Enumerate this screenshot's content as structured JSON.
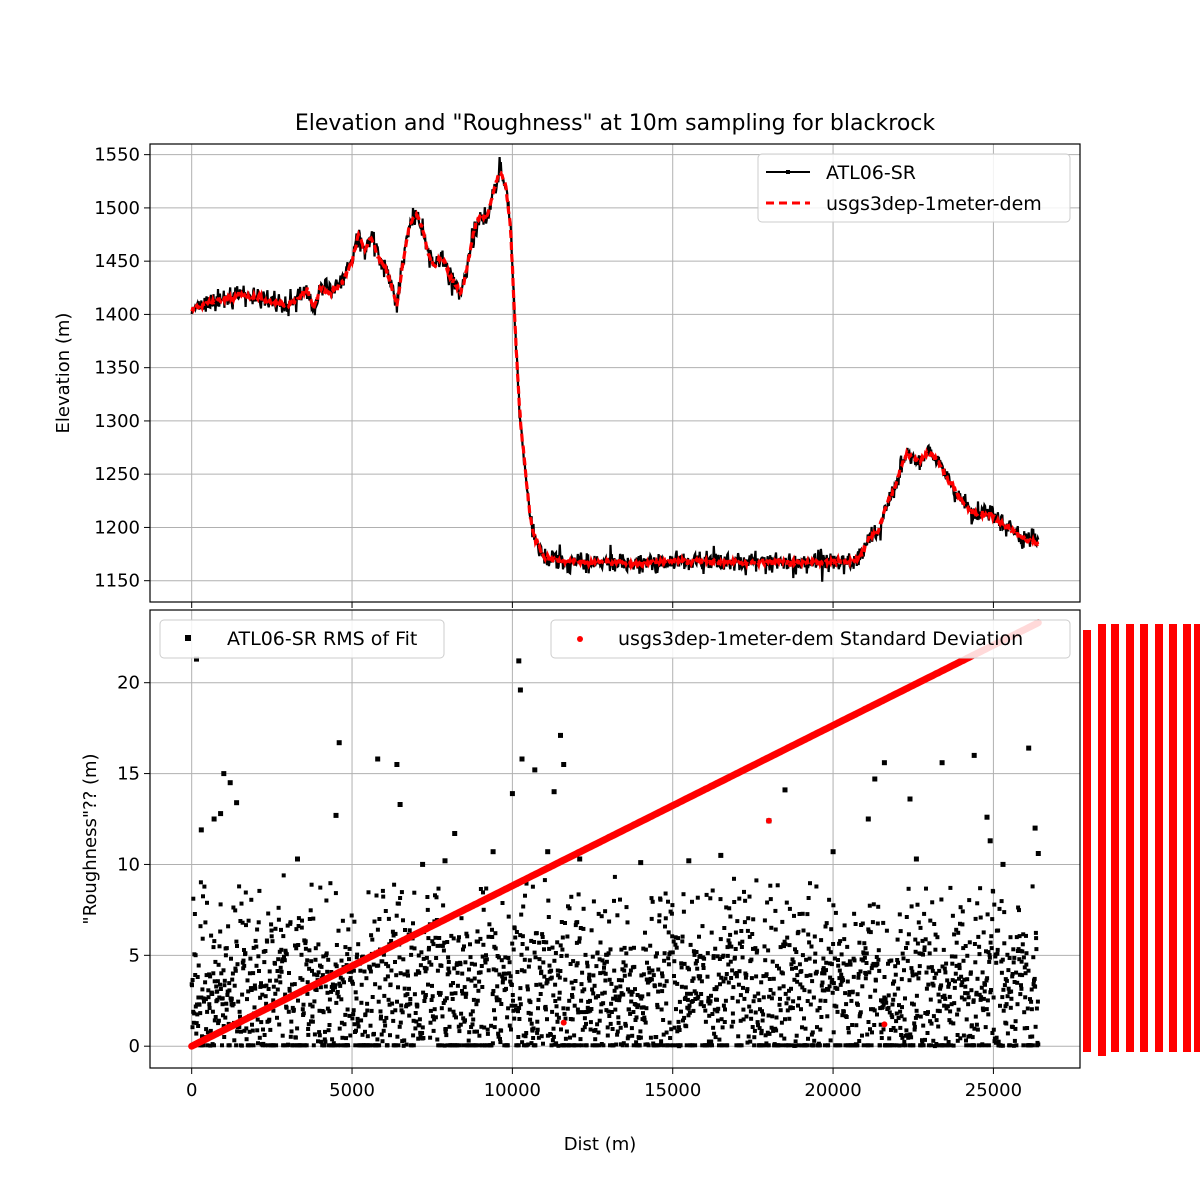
{
  "title": "Elevation and \"Roughness\" at 10m sampling for blackrock",
  "colors": {
    "atl06": "#000000",
    "dem": "#ff0000",
    "grid": "#b0b0b0"
  },
  "chart_data": [
    {
      "type": "line",
      "panel": "top",
      "title": "Elevation and \"Roughness\" at 10m sampling for blackrock",
      "ylabel": "Elevation (m)",
      "xlabel": "",
      "xlim": [
        -1300,
        27700
      ],
      "ylim": [
        1130,
        1560
      ],
      "x_ticks": [
        0,
        5000,
        10000,
        15000,
        20000,
        25000
      ],
      "y_ticks": [
        1150,
        1200,
        1250,
        1300,
        1350,
        1400,
        1450,
        1500,
        1550
      ],
      "y_tick_labels": [
        "1150",
        "1200",
        "1250",
        "1300",
        "1350",
        "1400",
        "1450",
        "1500",
        "1550"
      ],
      "grid": true,
      "legend_position": "top-right",
      "series": [
        {
          "name": "ATL06-SR",
          "style": "solid-marker",
          "x": [
            0,
            500,
            1000,
            1500,
            2000,
            2500,
            3000,
            3300,
            3600,
            3800,
            4000,
            4300,
            4700,
            5000,
            5200,
            5400,
            5600,
            5800,
            6000,
            6200,
            6400,
            6600,
            6800,
            7000,
            7200,
            7400,
            7600,
            7800,
            8000,
            8200,
            8400,
            8600,
            8800,
            9000,
            9200,
            9400,
            9600,
            9800,
            9950,
            10050,
            10150,
            10250,
            10350,
            10450,
            10550,
            10700,
            10850,
            11000,
            11300,
            11700,
            12000,
            13000,
            14000,
            15000,
            16000,
            17000,
            18000,
            19000,
            20000,
            20600,
            20900,
            21100,
            21400,
            21700,
            21900,
            22100,
            22300,
            22500,
            22700,
            22900,
            23100,
            23300,
            23500,
            23700,
            23900,
            24100,
            24300,
            24600,
            24900,
            25200,
            25500,
            25800,
            26100,
            26400
          ],
          "y": [
            1405,
            1410,
            1414,
            1418,
            1416,
            1412,
            1408,
            1415,
            1422,
            1405,
            1425,
            1420,
            1430,
            1450,
            1475,
            1460,
            1472,
            1455,
            1445,
            1430,
            1408,
            1450,
            1485,
            1495,
            1480,
            1455,
            1445,
            1455,
            1440,
            1428,
            1420,
            1445,
            1480,
            1492,
            1490,
            1515,
            1535,
            1520,
            1480,
            1410,
            1350,
            1300,
            1270,
            1240,
            1210,
            1190,
            1180,
            1172,
            1170,
            1168,
            1168,
            1167,
            1166,
            1168,
            1168,
            1167,
            1168,
            1167,
            1168,
            1168,
            1175,
            1190,
            1195,
            1225,
            1235,
            1255,
            1270,
            1265,
            1262,
            1268,
            1270,
            1260,
            1250,
            1240,
            1230,
            1222,
            1215,
            1212,
            1212,
            1206,
            1200,
            1192,
            1188,
            1185
          ]
        },
        {
          "name": "usgs3dep-1meter-dem",
          "style": "dashed",
          "x": [
            0,
            500,
            1000,
            1500,
            2000,
            2500,
            3000,
            3300,
            3600,
            3800,
            4000,
            4300,
            4700,
            5000,
            5200,
            5400,
            5600,
            5800,
            6000,
            6200,
            6400,
            6600,
            6800,
            7000,
            7200,
            7400,
            7600,
            7800,
            8000,
            8200,
            8400,
            8600,
            8800,
            9000,
            9200,
            9400,
            9600,
            9800,
            9950,
            10050,
            10150,
            10250,
            10350,
            10450,
            10550,
            10700,
            10850,
            11000,
            11300,
            11700,
            12000,
            13000,
            14000,
            15000,
            16000,
            17000,
            18000,
            19000,
            20000,
            20600,
            20900,
            21100,
            21400,
            21700,
            21900,
            22100,
            22300,
            22500,
            22700,
            22900,
            23100,
            23300,
            23500,
            23700,
            23900,
            24100,
            24300,
            24600,
            24900,
            25200,
            25500,
            25800,
            26100,
            26400
          ],
          "y": [
            1405,
            1410,
            1414,
            1418,
            1416,
            1412,
            1408,
            1415,
            1422,
            1405,
            1425,
            1420,
            1430,
            1450,
            1475,
            1460,
            1472,
            1455,
            1445,
            1430,
            1408,
            1450,
            1485,
            1495,
            1480,
            1455,
            1445,
            1455,
            1440,
            1428,
            1420,
            1445,
            1480,
            1492,
            1490,
            1515,
            1535,
            1520,
            1480,
            1410,
            1350,
            1300,
            1270,
            1240,
            1210,
            1190,
            1180,
            1172,
            1170,
            1168,
            1168,
            1167,
            1166,
            1168,
            1168,
            1167,
            1168,
            1167,
            1168,
            1168,
            1175,
            1190,
            1195,
            1225,
            1235,
            1255,
            1270,
            1265,
            1262,
            1268,
            1270,
            1260,
            1250,
            1240,
            1230,
            1222,
            1215,
            1212,
            1212,
            1206,
            1200,
            1192,
            1188,
            1185
          ]
        }
      ]
    },
    {
      "type": "scatter",
      "panel": "bottom",
      "ylabel": "\"Roughness\"?? (m)",
      "xlabel": "Dist (m)",
      "xlim": [
        -1300,
        27700
      ],
      "ylim": [
        -1.2,
        24.0
      ],
      "x_ticks": [
        0,
        5000,
        10000,
        15000,
        20000,
        25000
      ],
      "x_tick_labels": [
        "0",
        "5000",
        "10000",
        "15000",
        "20000",
        "25000"
      ],
      "y_ticks": [
        0,
        5,
        10,
        15,
        20
      ],
      "y_tick_labels": [
        "0",
        "5",
        "10",
        "15",
        "20"
      ],
      "grid": true,
      "legend_position": "top",
      "series": [
        {
          "name": "ATL06-SR RMS of Fit",
          "style": "square-marker",
          "distribution": "dense cloud of points mostly between 0 and 8 m across 0–26400 m",
          "x": [
            150,
            300,
            700,
            900,
            1000,
            1200,
            1400,
            3300,
            4600,
            4500,
            5800,
            6400,
            6500,
            7200,
            7900,
            8200,
            9400,
            10000,
            10200,
            10250,
            10300,
            10700,
            11100,
            11300,
            11500,
            11600,
            12100,
            14000,
            15500,
            16500,
            18500,
            18000,
            20000,
            21100,
            21300,
            21600,
            22400,
            22600,
            23400,
            24400,
            24800,
            24900,
            25300,
            26100,
            26300,
            26400
          ],
          "y": [
            21.3,
            11.9,
            12.5,
            12.8,
            15.0,
            14.5,
            13.4,
            10.3,
            16.7,
            12.7,
            15.8,
            15.5,
            13.3,
            10.0,
            10.2,
            11.7,
            10.7,
            13.9,
            21.2,
            19.6,
            15.8,
            15.2,
            10.7,
            14.0,
            17.1,
            15.5,
            10.3,
            10.1,
            10.2,
            10.5,
            14.1,
            12.4,
            10.7,
            12.5,
            14.7,
            15.6,
            13.6,
            10.3,
            15.6,
            16.0,
            12.6,
            11.3,
            10.0,
            16.4,
            12.0,
            10.6
          ],
          "y_range_bulk": [
            0,
            8
          ]
        },
        {
          "name": "usgs3dep-1meter-dem Standard Deviation",
          "style": "dot-marker",
          "x": [
            0,
            26400
          ],
          "y": [
            0,
            23.3
          ],
          "outliers": [
            {
              "x": 18000,
              "y": 12.4
            },
            {
              "x": 11600,
              "y": 1.3
            },
            {
              "x": 21600,
              "y": 1.2
            }
          ]
        }
      ]
    }
  ],
  "legend_top": {
    "entries": [
      "ATL06-SR",
      "usgs3dep-1meter-dem"
    ]
  },
  "legend_bottom": {
    "entries": [
      "ATL06-SR RMS of Fit",
      "usgs3dep-1meter-dem Standard Deviation"
    ]
  }
}
